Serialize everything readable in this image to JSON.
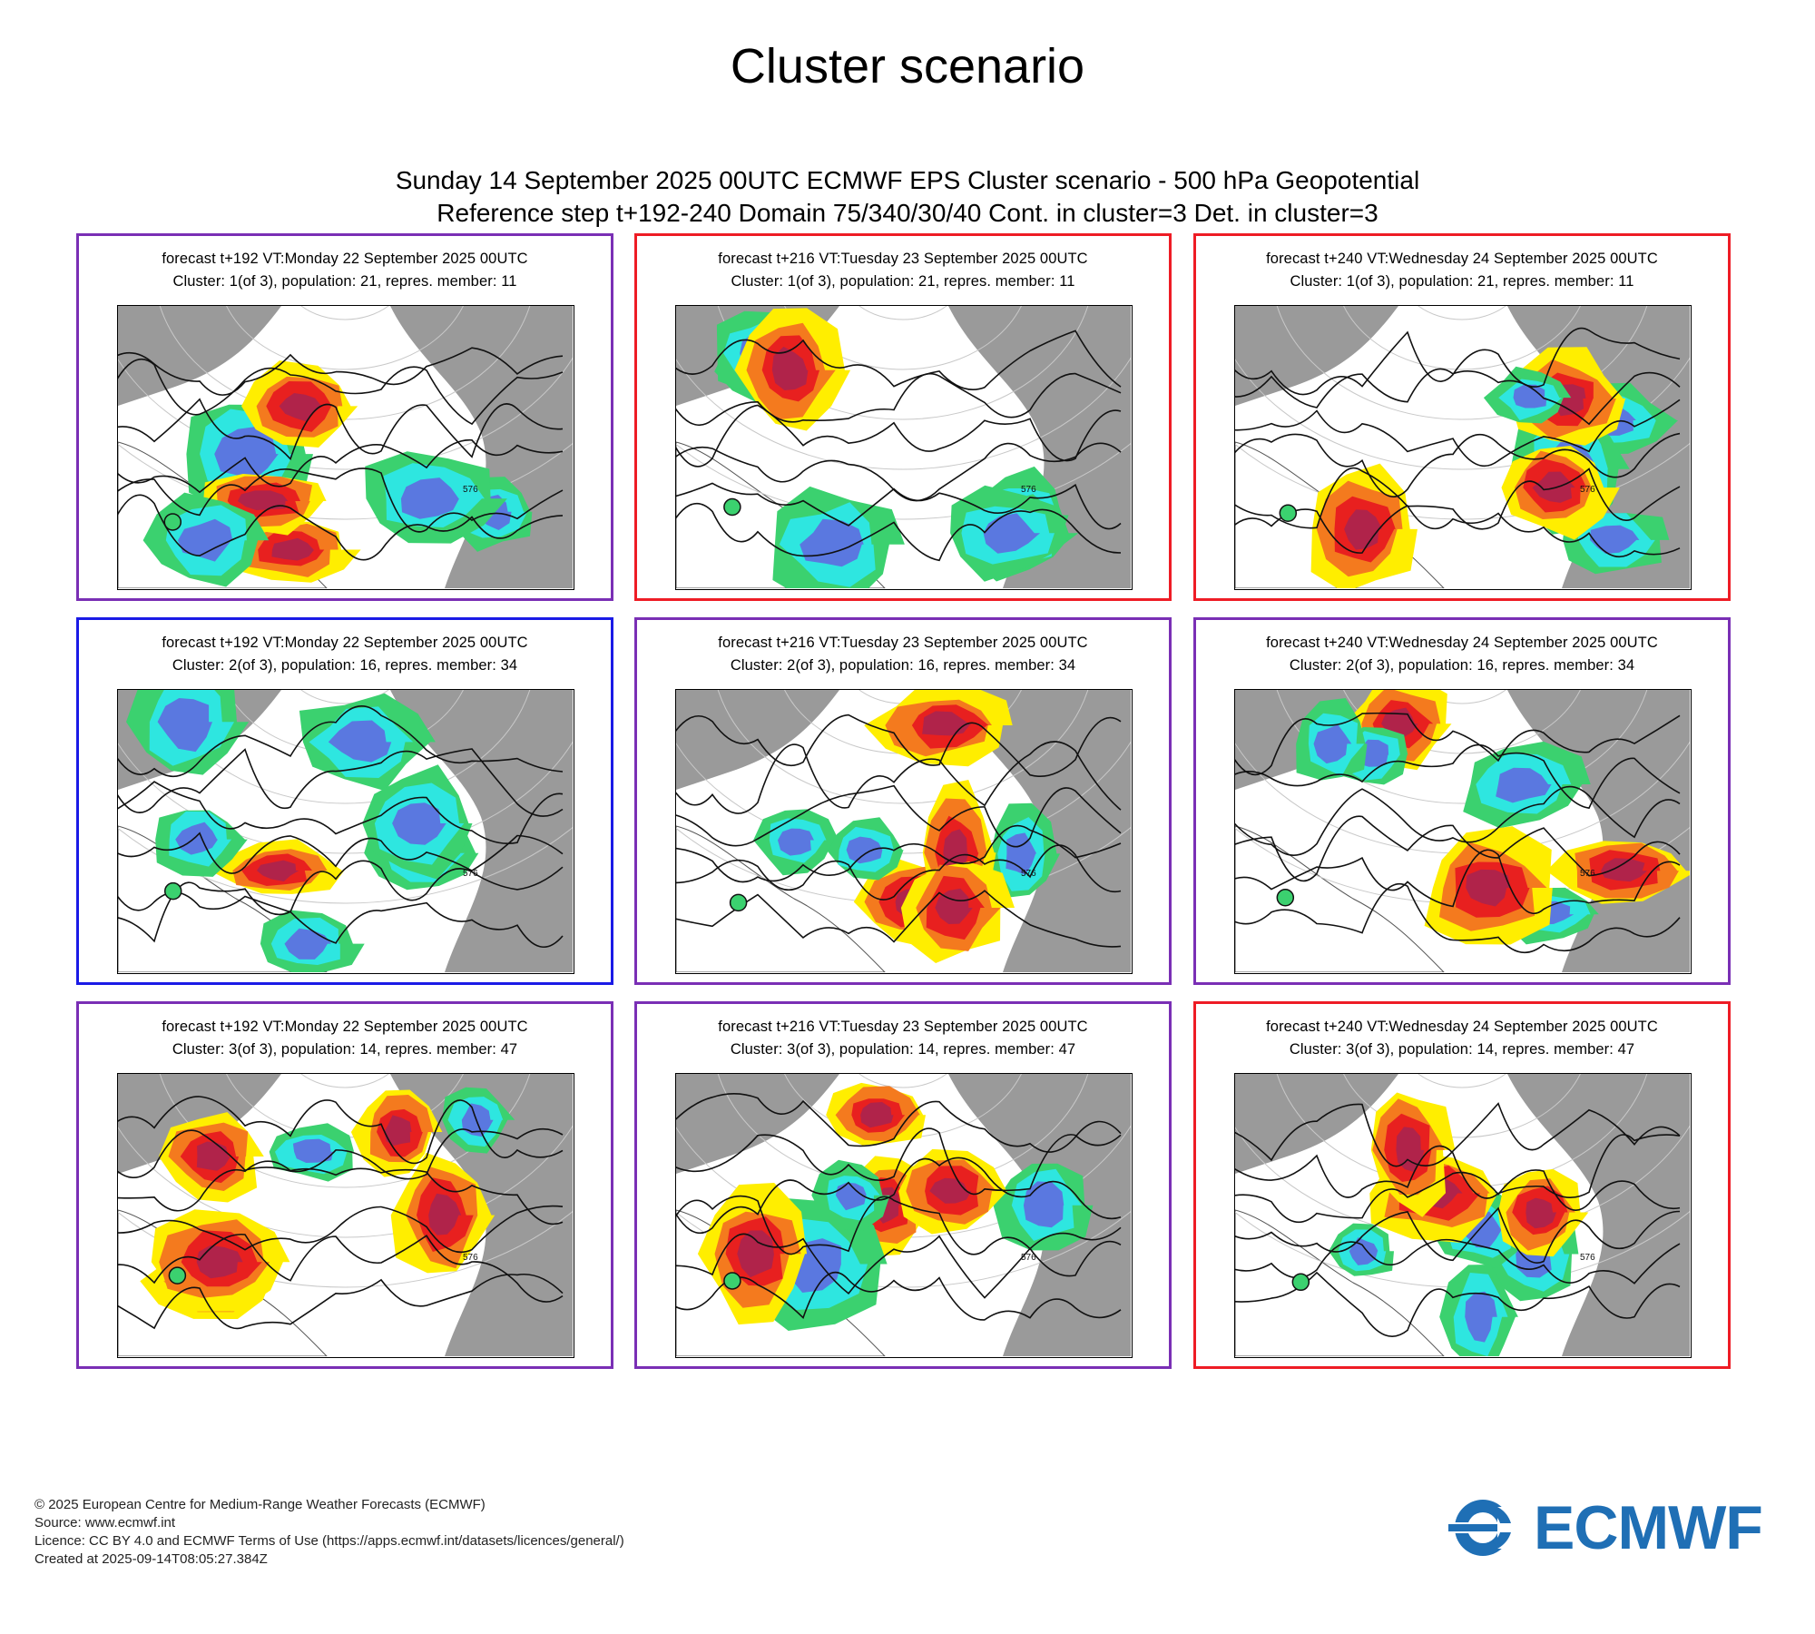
{
  "page_title": "Cluster scenario",
  "product_title_line1": "Sunday 14 September 2025 00UTC ECMWF EPS Cluster scenario - 500 hPa Geopotential",
  "product_title_line2": "Reference step t+192-240 Domain 75/340/30/40 Cont. in cluster=3 Det. in cluster=3",
  "panels": [
    {
      "line1": "forecast t+192 VT:Monday 22 September 2025 00UTC",
      "line2": "Cluster: 1(of 3), population: 21, repres. member: 11",
      "border": "purple"
    },
    {
      "line1": "forecast t+216 VT:Tuesday 23 September 2025 00UTC",
      "line2": "Cluster: 1(of 3), population: 21, repres. member: 11",
      "border": "red"
    },
    {
      "line1": "forecast t+240 VT:Wednesday 24 September 2025 00UTC",
      "line2": "Cluster: 1(of 3), population: 21, repres. member: 11",
      "border": "red"
    },
    {
      "line1": "forecast t+192 VT:Monday 22 September 2025 00UTC",
      "line2": "Cluster: 2(of 3), population: 16, repres. member: 34",
      "border": "blue"
    },
    {
      "line1": "forecast t+216 VT:Tuesday 23 September 2025 00UTC",
      "line2": "Cluster: 2(of 3), population: 16, repres. member: 34",
      "border": "purple"
    },
    {
      "line1": "forecast t+240 VT:Wednesday 24 September 2025 00UTC",
      "line2": "Cluster: 2(of 3), population: 16, repres. member: 34",
      "border": "purple"
    },
    {
      "line1": "forecast t+192 VT:Monday 22 September 2025 00UTC",
      "line2": "Cluster: 3(of 3), population: 14, repres. member: 47",
      "border": "purple"
    },
    {
      "line1": "forecast t+216 VT:Tuesday 23 September 2025 00UTC",
      "line2": "Cluster: 3(of 3), population: 14, repres. member: 47",
      "border": "purple"
    },
    {
      "line1": "forecast t+240 VT:Wednesday 24 September 2025 00UTC",
      "line2": "Cluster: 3(of 3), population: 14, repres. member: 47",
      "border": "red"
    }
  ],
  "contour_label": "576",
  "footer": {
    "line1": "© 2025 European Centre for Medium-Range Weather Forecasts (ECMWF)",
    "line2": "Source: www.ecmwf.int",
    "line3": "Licence: CC BY 4.0 and ECMWF Terms of Use (https://apps.ecmwf.int/datasets/licences/general/)",
    "line4": "Created at 2025-09-14T08:05:27.384Z"
  },
  "logo_text": "ECMWF",
  "colors": {
    "border_red": "#ee1c25",
    "border_blue": "#1a1ae6",
    "border_purple": "#7a2fb5",
    "logo_blue": "#1f6fb5",
    "land": "#9a9a9a",
    "anom_pos_strong": "#b0234a",
    "anom_pos": "#e8201f",
    "anom_pos_weak": "#f47a1e",
    "anom_pos_faint": "#ffee00",
    "anom_neg_faint": "#3bd16f",
    "anom_neg": "#2ee6e0",
    "anom_neg_strong": "#5a78e0"
  }
}
